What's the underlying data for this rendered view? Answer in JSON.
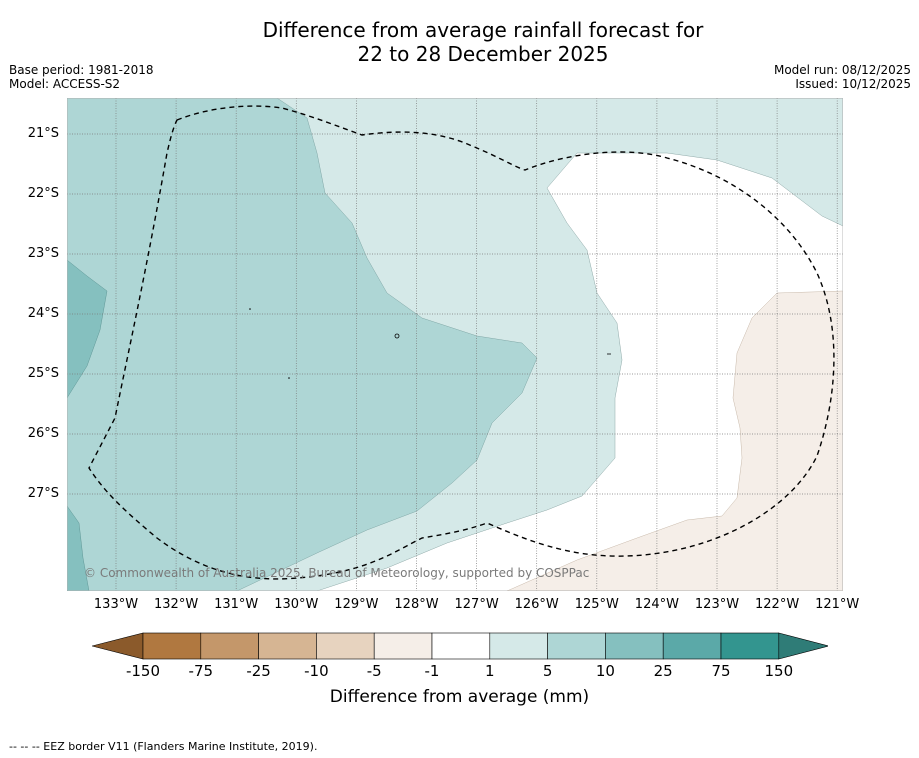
{
  "title_line1": "Difference from average rainfall forecast for",
  "title_line2": "22 to 28 December 2025",
  "base_period": "Base period: 1981-2018",
  "model": "Model: ACCESS-S2",
  "model_run": "Model run: 08/12/2025",
  "issued": "Issued: 10/12/2025",
  "copyright": "© Commonwealth of Australia 2025, Bureau of Meteorology, supported by COSPPac",
  "lat_labels": [
    "21°S",
    "22°S",
    "23°S",
    "24°S",
    "25°S",
    "26°S",
    "27°S"
  ],
  "lon_labels": [
    "133°W",
    "132°W",
    "131°W",
    "130°W",
    "129°W",
    "128°W",
    "127°W",
    "126°W",
    "125°W",
    "124°W",
    "123°W",
    "122°W",
    "121°W"
  ],
  "legend": {
    "title": "Difference from average (mm)",
    "ticks": [
      "-150",
      "-75",
      "-25",
      "-10",
      "-5",
      "-1",
      "1",
      "5",
      "10",
      "25",
      "75",
      "150"
    ],
    "colors": [
      "#8b5a2b",
      "#b07840",
      "#c4976a",
      "#d6b593",
      "#e7d3bf",
      "#f5eee8",
      "#ffffff",
      "#d5e9e8",
      "#aed6d5",
      "#85c0bf",
      "#5ba9a8",
      "#33958f",
      "#2f7c77"
    ]
  },
  "footnote": "-- -- -- EEZ border V11 (Flanders Marine Institute, 2019)."
}
